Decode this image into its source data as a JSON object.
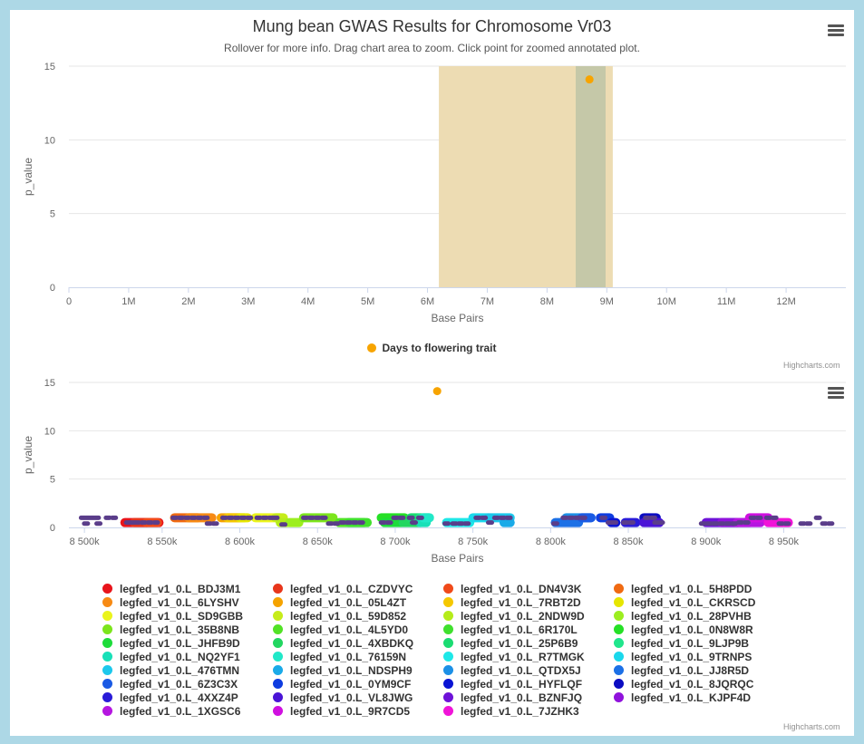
{
  "title": "Mung bean GWAS Results for Chromosome Vr03",
  "subtitle": "Rollover for more info. Drag chart area to zoom. Click point for zoomed annotated plot.",
  "credits": "Highcharts.com",
  "icons": {
    "menu": "hamburger-menu-icon"
  },
  "chart_data": [
    {
      "type": "scatter",
      "xlabel": "Base Pairs",
      "ylabel": "p_value",
      "xlim": [
        0,
        13000000
      ],
      "ylim": [
        0,
        15
      ],
      "x_ticks": [
        {
          "value": 0,
          "label": "0"
        },
        {
          "value": 1000000,
          "label": "1M"
        },
        {
          "value": 2000000,
          "label": "2M"
        },
        {
          "value": 3000000,
          "label": "3M"
        },
        {
          "value": 4000000,
          "label": "4M"
        },
        {
          "value": 5000000,
          "label": "5M"
        },
        {
          "value": 6000000,
          "label": "6M"
        },
        {
          "value": 7000000,
          "label": "7M"
        },
        {
          "value": 8000000,
          "label": "8M"
        },
        {
          "value": 9000000,
          "label": "9M"
        },
        {
          "value": 10000000,
          "label": "10M"
        },
        {
          "value": 11000000,
          "label": "11M"
        },
        {
          "value": 12000000,
          "label": "12M"
        }
      ],
      "y_ticks": [
        0,
        5,
        10,
        15
      ],
      "grid": true,
      "plot_bands": [
        {
          "from": 6190000,
          "to": 9100000,
          "color": "#eddcb3"
        },
        {
          "from": 8480000,
          "to": 8980000,
          "color": "#c5c8a8"
        }
      ],
      "series": [
        {
          "name": "Days to flowering trait",
          "color": "#f7a400",
          "points": [
            [
              8710000,
              14.1
            ]
          ]
        }
      ],
      "legend": "bottom-center"
    },
    {
      "type": "scatter",
      "xlabel": "Base Pairs",
      "ylabel": "p_value",
      "xlim": [
        8490000,
        8990000
      ],
      "ylim": [
        0,
        15
      ],
      "x_ticks": [
        {
          "value": 8500000,
          "label": "8 500k"
        },
        {
          "value": 8550000,
          "label": "8 550k"
        },
        {
          "value": 8600000,
          "label": "8 600k"
        },
        {
          "value": 8650000,
          "label": "8 650k"
        },
        {
          "value": 8700000,
          "label": "8 700k"
        },
        {
          "value": 8750000,
          "label": "8 750k"
        },
        {
          "value": 8800000,
          "label": "8 800k"
        },
        {
          "value": 8850000,
          "label": "8 850k"
        },
        {
          "value": 8900000,
          "label": "8 900k"
        },
        {
          "value": 8950000,
          "label": "8 950k"
        }
      ],
      "y_ticks": [
        0,
        5,
        10,
        15
      ],
      "grid": true,
      "trait_point": {
        "x": 8727000,
        "y": 14.1,
        "color": "#f7a400"
      },
      "snp_color": "#5a3d8a",
      "genes": [
        {
          "name": "legfed_v1_0.L_BDJ3M1",
          "color": "#e8141b",
          "segments": [
            [
              8526000,
              8548000,
              0.5
            ]
          ]
        },
        {
          "name": "legfed_v1_0.L_CZDVYC",
          "color": "#e8361b",
          "segments": [
            [
              8532000,
              8540000,
              0.5
            ]
          ]
        },
        {
          "name": "legfed_v1_0.L_DN4V3K",
          "color": "#f04a1a",
          "segments": [
            [
              8540000,
              8547000,
              0.5
            ]
          ]
        },
        {
          "name": "legfed_v1_0.L_5H8PDD",
          "color": "#f06a12",
          "segments": [
            [
              8558000,
              8573000,
              1.0
            ]
          ]
        },
        {
          "name": "legfed_v1_0.L_6LYSHV",
          "color": "#f78a14",
          "segments": [
            [
              8567000,
              8582000,
              1.0
            ]
          ]
        },
        {
          "name": "legfed_v1_0.L_05L4ZT",
          "color": "#f5a300",
          "segments": [
            [
              8588000,
              8600000,
              1.0
            ]
          ]
        },
        {
          "name": "legfed_v1_0.L_7RBT2D",
          "color": "#f5c800",
          "segments": [
            [
              8592000,
              8603000,
              1.0
            ]
          ]
        },
        {
          "name": "legfed_v1_0.L_CKRSCD",
          "color": "#e6e600",
          "segments": [
            [
              8600000,
              8605000,
              1.0
            ]
          ]
        },
        {
          "name": "legfed_v1_0.L_SD9GBB",
          "color": "#eaf41c",
          "segments": [
            [
              8610000,
              8626000,
              1.0
            ]
          ]
        },
        {
          "name": "legfed_v1_0.L_59D852",
          "color": "#c6ec1a",
          "segments": [
            [
              8623000,
              8628000,
              1.0
            ]
          ]
        },
        {
          "name": "legfed_v1_0.L_2NDW9D",
          "color": "#b5ec1a",
          "segments": [
            [
              8626000,
              8630000,
              0.5
            ]
          ]
        },
        {
          "name": "legfed_v1_0.L_28PVHB",
          "color": "#9cee20",
          "segments": [
            [
              8632000,
              8638000,
              0.5
            ]
          ]
        },
        {
          "name": "legfed_v1_0.L_35B8NB",
          "color": "#7ce51c",
          "segments": [
            [
              8641000,
              8660000,
              1.0
            ]
          ]
        },
        {
          "name": "legfed_v1_0.L_4L5YD0",
          "color": "#52e226",
          "segments": [
            [
              8664000,
              8680000,
              0.5
            ]
          ]
        },
        {
          "name": "legfed_v1_0.L_6R170L",
          "color": "#40e02e",
          "segments": [
            [
              8670000,
              8682000,
              0.5
            ]
          ]
        },
        {
          "name": "legfed_v1_0.L_0N8W8R",
          "color": "#26e026",
          "segments": [
            [
              8691000,
              8706000,
              1.0
            ]
          ]
        },
        {
          "name": "legfed_v1_0.L_JHFB9D",
          "color": "#1ddc3a",
          "segments": [
            [
              8693000,
              8704000,
              0.5
            ]
          ]
        },
        {
          "name": "legfed_v1_0.L_4XBDKQ",
          "color": "#22d660",
          "segments": [
            [
              8705000,
              8716000,
              0.5
            ]
          ]
        },
        {
          "name": "legfed_v1_0.L_25P6B9",
          "color": "#1bdc72",
          "segments": [
            [
              8710000,
              8716000,
              1.0
            ]
          ]
        },
        {
          "name": "legfed_v1_0.L_9LJP9B",
          "color": "#20e68c",
          "segments": [
            [
              8716000,
              8722000,
              1.0
            ]
          ]
        },
        {
          "name": "legfed_v1_0.L_NQ2YF1",
          "color": "#18e0b8",
          "segments": [
            [
              8716000,
              8720000,
              0.5
            ]
          ]
        },
        {
          "name": "legfed_v1_0.L_76159N",
          "color": "#20e8c8",
          "segments": [
            [
              8718000,
              8722000,
              1.0
            ]
          ]
        },
        {
          "name": "legfed_v1_0.L_R7TMGK",
          "color": "#1ee8e8",
          "segments": [
            [
              8733000,
              8748000,
              0.5
            ]
          ]
        },
        {
          "name": "legfed_v1_0.L_9TRNPS",
          "color": "#1ad8ec",
          "segments": [
            [
              8750000,
              8760000,
              1.0
            ]
          ]
        },
        {
          "name": "legfed_v1_0.L_476TMN",
          "color": "#1cc8ec",
          "segments": [
            [
              8760000,
              8774000,
              1.0
            ]
          ]
        },
        {
          "name": "legfed_v1_0.L_NDSPH9",
          "color": "#1aaae8",
          "segments": [
            [
              8770000,
              8774000,
              0.5
            ]
          ]
        },
        {
          "name": "legfed_v1_0.L_QTDX5J",
          "color": "#1c90e6",
          "segments": [
            [
              8810000,
              8826000,
              1.0
            ]
          ]
        },
        {
          "name": "legfed_v1_0.L_JJ8R5D",
          "color": "#1c70e6",
          "segments": [
            [
              8803000,
              8818000,
              0.5
            ]
          ]
        },
        {
          "name": "legfed_v1_0.L_6Z3C3X",
          "color": "#1a5ae4",
          "segments": [
            [
              8820000,
              8826000,
              1.0
            ]
          ]
        },
        {
          "name": "legfed_v1_0.L_0YM9CF",
          "color": "#0e3ce0",
          "segments": [
            [
              8832000,
              8838000,
              1.0
            ]
          ]
        },
        {
          "name": "legfed_v1_0.L_HYFLQF",
          "color": "#0a14d4",
          "segments": [
            [
              8839000,
              8842000,
              0.5
            ]
          ]
        },
        {
          "name": "legfed_v1_0.L_8JQRQC",
          "color": "#0b0cc2",
          "segments": [
            [
              8860000,
              8868000,
              1.0
            ]
          ]
        },
        {
          "name": "legfed_v1_0.L_4XXZ4P",
          "color": "#2a1bd8",
          "segments": [
            [
              8848000,
              8855000,
              0.5
            ]
          ]
        },
        {
          "name": "legfed_v1_0.L_VL8JWG",
          "color": "#4a14d6",
          "segments": [
            [
              8860000,
              8870000,
              0.5
            ]
          ]
        },
        {
          "name": "legfed_v1_0.L_BZNFJQ",
          "color": "#6e12d8",
          "segments": [
            [
              8900000,
              8920000,
              0.5
            ]
          ]
        },
        {
          "name": "legfed_v1_0.L_KJPF4D",
          "color": "#9012dc",
          "segments": [
            [
              8910000,
              8928000,
              0.5
            ]
          ]
        },
        {
          "name": "legfed_v1_0.L_1XGSC6",
          "color": "#b516e0",
          "segments": [
            [
              8920000,
              8935000,
              0.5
            ]
          ]
        },
        {
          "name": "legfed_v1_0.L_9R7CD5",
          "color": "#d010e0",
          "segments": [
            [
              8928000,
              8940000,
              1.0
            ]
          ]
        },
        {
          "name": "legfed_v1_0.L_7JZHK3",
          "color": "#f014d8",
          "segments": [
            [
              8940000,
              8953000,
              0.5
            ]
          ]
        }
      ],
      "snps": [
        [
          8499000,
          1.0
        ],
        [
          8502000,
          1.0
        ],
        [
          8505000,
          1.0
        ],
        [
          8508000,
          1.0
        ],
        [
          8501000,
          0.4
        ],
        [
          8509000,
          0.4
        ],
        [
          8515000,
          1.0
        ],
        [
          8519000,
          1.0
        ],
        [
          8528000,
          0.5
        ],
        [
          8531000,
          0.5
        ],
        [
          8534000,
          0.5
        ],
        [
          8538000,
          0.5
        ],
        [
          8542000,
          0.5
        ],
        [
          8546000,
          0.5
        ],
        [
          8558000,
          1.0
        ],
        [
          8562000,
          1.0
        ],
        [
          8566000,
          1.0
        ],
        [
          8570000,
          1.0
        ],
        [
          8574000,
          1.0
        ],
        [
          8578000,
          1.0
        ],
        [
          8580000,
          0.4
        ],
        [
          8584000,
          0.4
        ],
        [
          8590000,
          1.0
        ],
        [
          8594000,
          1.0
        ],
        [
          8598000,
          1.0
        ],
        [
          8602000,
          1.0
        ],
        [
          8606000,
          1.0
        ],
        [
          8612000,
          1.0
        ],
        [
          8616000,
          1.0
        ],
        [
          8620000,
          1.0
        ],
        [
          8623000,
          1.0
        ],
        [
          8628000,
          0.3
        ],
        [
          8642000,
          1.0
        ],
        [
          8646000,
          1.0
        ],
        [
          8650000,
          1.0
        ],
        [
          8654000,
          1.0
        ],
        [
          8658000,
          0.4
        ],
        [
          8662000,
          0.4
        ],
        [
          8666000,
          0.5
        ],
        [
          8670000,
          0.5
        ],
        [
          8674000,
          0.5
        ],
        [
          8678000,
          0.5
        ],
        [
          8692000,
          0.5
        ],
        [
          8696000,
          0.5
        ],
        [
          8700000,
          1.0
        ],
        [
          8704000,
          1.0
        ],
        [
          8710000,
          1.0
        ],
        [
          8712000,
          0.5
        ],
        [
          8716000,
          1.0
        ],
        [
          8733000,
          0.4
        ],
        [
          8738000,
          0.4
        ],
        [
          8742000,
          0.4
        ],
        [
          8746000,
          0.4
        ],
        [
          8753000,
          1.0
        ],
        [
          8757000,
          1.0
        ],
        [
          8761000,
          0.5
        ],
        [
          8765000,
          1.0
        ],
        [
          8769000,
          1.0
        ],
        [
          8773000,
          1.0
        ],
        [
          8803000,
          0.4
        ],
        [
          8809000,
          1.0
        ],
        [
          8813000,
          1.0
        ],
        [
          8817000,
          1.0
        ],
        [
          8821000,
          1.0
        ],
        [
          8834000,
          1.0
        ],
        [
          8838000,
          0.5
        ],
        [
          8841000,
          0.5
        ],
        [
          8848000,
          0.5
        ],
        [
          8852000,
          0.5
        ],
        [
          8862000,
          1.0
        ],
        [
          8866000,
          1.0
        ],
        [
          8868000,
          0.5
        ],
        [
          8871000,
          0.5
        ],
        [
          8898000,
          0.4
        ],
        [
          8902000,
          0.4
        ],
        [
          8906000,
          0.4
        ],
        [
          8910000,
          0.4
        ],
        [
          8914000,
          0.4
        ],
        [
          8918000,
          0.4
        ],
        [
          8922000,
          0.5
        ],
        [
          8926000,
          0.5
        ],
        [
          8930000,
          1.0
        ],
        [
          8934000,
          1.0
        ],
        [
          8940000,
          1.0
        ],
        [
          8944000,
          1.0
        ],
        [
          8948000,
          0.4
        ],
        [
          8952000,
          0.4
        ],
        [
          8962000,
          0.4
        ],
        [
          8966000,
          0.4
        ],
        [
          8972000,
          1.0
        ],
        [
          8976000,
          0.4
        ],
        [
          8980000,
          0.4
        ]
      ]
    }
  ]
}
